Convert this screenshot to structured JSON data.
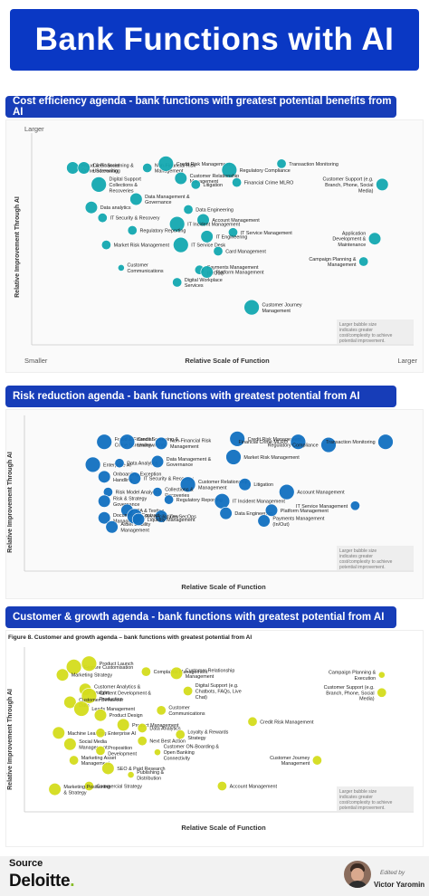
{
  "title": "Bank Functions with AI",
  "source_label": "Source",
  "source_name": "Deloitte",
  "edited_by": "Edited by",
  "editor_name": "Victor Yaromin",
  "chart_data": [
    {
      "type": "scatter",
      "title": "Cost efficiency agenda - bank functions with greatest potential benefits from AI",
      "xlabel": "Relative Scale of Function",
      "ylabel": "Relative Improvement Through AI",
      "corner_labels": {
        "top_left": "Larger",
        "bottom_left": "Smaller",
        "bottom_right": "Larger"
      },
      "note": "Larger bubble size indicates greater cost/complexity to achieve potential improvement.",
      "color": "#13a8b0",
      "xlim": [
        0,
        100
      ],
      "ylim": [
        0,
        100
      ],
      "points": [
        {
          "label": "Fraud & Financial Crime Screening",
          "x": 11,
          "y": 85,
          "size": 3
        },
        {
          "label": "Credit Screening & Underwriting",
          "x": 14,
          "y": 85,
          "size": 3
        },
        {
          "label": "Non-Financial Risk Management",
          "x": 31,
          "y": 85,
          "size": 2
        },
        {
          "label": "Credit Risk Management",
          "x": 36,
          "y": 87,
          "size": 4
        },
        {
          "label": "Regulatory Compliance",
          "x": 53,
          "y": 84,
          "size": 4
        },
        {
          "label": "Transaction Monitoring",
          "x": 67,
          "y": 87,
          "size": 2
        },
        {
          "label": "Customer Support (e.g. Branch, Phone, Social Media)",
          "x": 94,
          "y": 77,
          "size": 3
        },
        {
          "label": "Digital Support Collections & Recoveries",
          "x": 18,
          "y": 77,
          "size": 4
        },
        {
          "label": "Customer Relationship Management",
          "x": 40,
          "y": 80,
          "size": 3
        },
        {
          "label": "Financial Crime MLRO",
          "x": 55,
          "y": 78,
          "size": 2
        },
        {
          "label": "Litigation",
          "x": 44,
          "y": 77,
          "size": 2
        },
        {
          "label": "Data Management & Governance",
          "x": 28,
          "y": 70,
          "size": 3
        },
        {
          "label": "Data analytics",
          "x": 16,
          "y": 66,
          "size": 3
        },
        {
          "label": "Data Engineering",
          "x": 42,
          "y": 65,
          "size": 2
        },
        {
          "label": "Account Management",
          "x": 46,
          "y": 60,
          "size": 3
        },
        {
          "label": "Application Development & Maintenance",
          "x": 92,
          "y": 51,
          "size": 3
        },
        {
          "label": "IT Security & Recovery",
          "x": 19,
          "y": 61,
          "size": 2
        },
        {
          "label": "IT Incident Management",
          "x": 39,
          "y": 58,
          "size": 4
        },
        {
          "label": "IT Service Management",
          "x": 54,
          "y": 54,
          "size": 2
        },
        {
          "label": "Regulatory Reporting",
          "x": 27,
          "y": 55,
          "size": 2
        },
        {
          "label": "Market Risk Management",
          "x": 20,
          "y": 48,
          "size": 2
        },
        {
          "label": "IT Service Desk",
          "x": 40,
          "y": 48,
          "size": 4
        },
        {
          "label": "IT Engineering",
          "x": 47,
          "y": 52,
          "size": 3
        },
        {
          "label": "Card Management",
          "x": 50,
          "y": 45,
          "size": 2
        },
        {
          "label": "Payments Management (In/Out)",
          "x": 45,
          "y": 36,
          "size": 2
        },
        {
          "label": "Platform Management",
          "x": 47,
          "y": 35,
          "size": 3
        },
        {
          "label": "Customer Communications",
          "x": 24,
          "y": 37,
          "size": 1
        },
        {
          "label": "Campaign Planning & Management",
          "x": 89,
          "y": 40,
          "size": 2
        },
        {
          "label": "Digital Workplace Services",
          "x": 39,
          "y": 30,
          "size": 2
        },
        {
          "label": "Customer Journey Management",
          "x": 59,
          "y": 18,
          "size": 4
        }
      ]
    },
    {
      "type": "scatter",
      "title": "Risk reduction agenda - bank functions with greatest potential from AI",
      "xlabel": "Relative Scale of Function",
      "ylabel": "Relative Improvement Through AI",
      "note": "Larger bubble size indicates greater cost/complexity to achieve potential improvement.",
      "color": "#1170c0",
      "xlim": [
        0,
        100
      ],
      "ylim": [
        0,
        100
      ],
      "points": [
        {
          "label": "Fraud & Financial Crime Screening",
          "x": 21,
          "y": 85,
          "size": 4
        },
        {
          "label": "Credit Screening & Underwriting",
          "x": 27,
          "y": 85,
          "size": 4
        },
        {
          "label": "Non-Financial Risk Management",
          "x": 36,
          "y": 84,
          "size": 3
        },
        {
          "label": "Credit Risk Management",
          "x": 56,
          "y": 87,
          "size": 4
        },
        {
          "label": "Financial Crime MLRO",
          "x": 72,
          "y": 85,
          "size": 4
        },
        {
          "label": "Regulatory Compliance",
          "x": 80,
          "y": 83,
          "size": 4
        },
        {
          "label": "Transaction Monitoring",
          "x": 95,
          "y": 85,
          "size": 4
        },
        {
          "label": "Enterprise AI",
          "x": 18,
          "y": 70,
          "size": 4
        },
        {
          "label": "Data Analytics",
          "x": 25,
          "y": 71,
          "size": 2
        },
        {
          "label": "Data Management & Governance",
          "x": 35,
          "y": 72,
          "size": 3
        },
        {
          "label": "Market Risk Management",
          "x": 55,
          "y": 75,
          "size": 4
        },
        {
          "label": "Onboarding Exception Handling",
          "x": 21,
          "y": 62,
          "size": 3
        },
        {
          "label": "IT Security & Recovery",
          "x": 29,
          "y": 61,
          "size": 3
        },
        {
          "label": "Customer Relationship Management",
          "x": 43,
          "y": 57,
          "size": 4
        },
        {
          "label": "Litigation",
          "x": 58,
          "y": 57,
          "size": 3
        },
        {
          "label": "Risk Model Analytics",
          "x": 22,
          "y": 52,
          "size": 2
        },
        {
          "label": "Collections & Recoveries",
          "x": 35,
          "y": 52,
          "size": 2
        },
        {
          "label": "Account Management",
          "x": 69,
          "y": 52,
          "size": 4
        },
        {
          "label": "Risk & Strategy Governance",
          "x": 21,
          "y": 46,
          "size": 3
        },
        {
          "label": "Regulatory Reporting",
          "x": 38,
          "y": 47,
          "size": 2
        },
        {
          "label": "IT Incident Management",
          "x": 52,
          "y": 46,
          "size": 4
        },
        {
          "label": "IT Service Management",
          "x": 87,
          "y": 43,
          "size": 2
        },
        {
          "label": "QA & Testing",
          "x": 27,
          "y": 40,
          "size": 3
        },
        {
          "label": "DevSecOps",
          "x": 36,
          "y": 36,
          "size": 3
        },
        {
          "label": "Document & Contract Management",
          "x": 21,
          "y": 35,
          "size": 3
        },
        {
          "label": "Asset Liability Management",
          "x": 23,
          "y": 29,
          "size": 3
        },
        {
          "label": "Reconciliations",
          "x": 29,
          "y": 36,
          "size": 4
        },
        {
          "label": "Liquidity Management",
          "x": 30,
          "y": 34,
          "size": 3
        },
        {
          "label": "Data Engineering",
          "x": 53,
          "y": 38,
          "size": 3
        },
        {
          "label": "Platform Management",
          "x": 65,
          "y": 40,
          "size": 3
        },
        {
          "label": "Payments Management (In/Out)",
          "x": 63,
          "y": 33,
          "size": 3
        }
      ]
    },
    {
      "type": "scatter",
      "title": "Customer & growth agenda - bank functions with greatest potential from AI",
      "subtitle": "Figure 8. Customer and growth agenda – bank functions with greatest potential from AI",
      "xlabel": "Relative Scale of Function",
      "ylabel": "Relative Improvement Through AI",
      "note": "Larger bubble size indicates greater cost/complexity to achieve potential improvement.",
      "color": "#d4dc1c",
      "xlim": [
        0,
        100
      ],
      "ylim": [
        0,
        100
      ],
      "points": [
        {
          "label": "Feature Customisation",
          "x": 13,
          "y": 90,
          "size": 4
        },
        {
          "label": "Product Launch",
          "x": 17,
          "y": 92,
          "size": 4
        },
        {
          "label": "Complaints Management",
          "x": 32,
          "y": 87,
          "size": 2
        },
        {
          "label": "Campaign Planning & Execution",
          "x": 94,
          "y": 85,
          "size": 1
        },
        {
          "label": "Marketing Strategy",
          "x": 10,
          "y": 85,
          "size": 3
        },
        {
          "label": "Customer Relationship Management",
          "x": 40,
          "y": 86,
          "size": 3
        },
        {
          "label": "Customer Analytics & Insight",
          "x": 16,
          "y": 76,
          "size": 3
        },
        {
          "label": "Digital Support (e.g. Chatbots, FAQs, Live Chat)",
          "x": 43,
          "y": 75,
          "size": 2
        },
        {
          "label": "Customer Support (e.g. Branch, Phone, Social Media)",
          "x": 94,
          "y": 74,
          "size": 2
        },
        {
          "label": "Content Development & Production",
          "x": 17,
          "y": 72,
          "size": 4
        },
        {
          "label": "Customer Behaviour Data",
          "x": 12,
          "y": 68,
          "size": 3
        },
        {
          "label": "Leads Management",
          "x": 15,
          "y": 64,
          "size": 4
        },
        {
          "label": "Customer Communications",
          "x": 36,
          "y": 63,
          "size": 2
        },
        {
          "label": "Product Design",
          "x": 20,
          "y": 60,
          "size": 3
        },
        {
          "label": "Product Management",
          "x": 26,
          "y": 54,
          "size": 3
        },
        {
          "label": "Credit Risk Management",
          "x": 60,
          "y": 56,
          "size": 2
        },
        {
          "label": "Data Analytics",
          "x": 31,
          "y": 52,
          "size": 2
        },
        {
          "label": "Machine Learning",
          "x": 9,
          "y": 49,
          "size": 3
        },
        {
          "label": "Enterprise AI",
          "x": 20,
          "y": 49,
          "size": 2
        },
        {
          "label": "Loyalty & Rewards Strategy",
          "x": 41,
          "y": 48,
          "size": 2
        },
        {
          "label": "Next Best Action",
          "x": 31,
          "y": 44,
          "size": 2
        },
        {
          "label": "Social Media Management",
          "x": 12,
          "y": 42,
          "size": 3
        },
        {
          "label": "Proposition Development",
          "x": 20,
          "y": 38,
          "size": 2
        },
        {
          "label": "Customer ON-Boarding & Open Banking Connectivity",
          "x": 35,
          "y": 37,
          "size": 1
        },
        {
          "label": "Customer Journey Management",
          "x": 77,
          "y": 32,
          "size": 2
        },
        {
          "label": "Marketing Asset Management",
          "x": 13,
          "y": 32,
          "size": 2
        },
        {
          "label": "SEO & Paid Research",
          "x": 22,
          "y": 27,
          "size": 3
        },
        {
          "label": "Publishing & Distribution",
          "x": 28,
          "y": 23,
          "size": 1
        },
        {
          "label": "Account Management",
          "x": 52,
          "y": 16,
          "size": 2
        },
        {
          "label": "Commercial Strategy",
          "x": 17,
          "y": 16,
          "size": 2
        },
        {
          "label": "Marketing Positioning & Strategy",
          "x": 8,
          "y": 14,
          "size": 3
        }
      ]
    }
  ]
}
